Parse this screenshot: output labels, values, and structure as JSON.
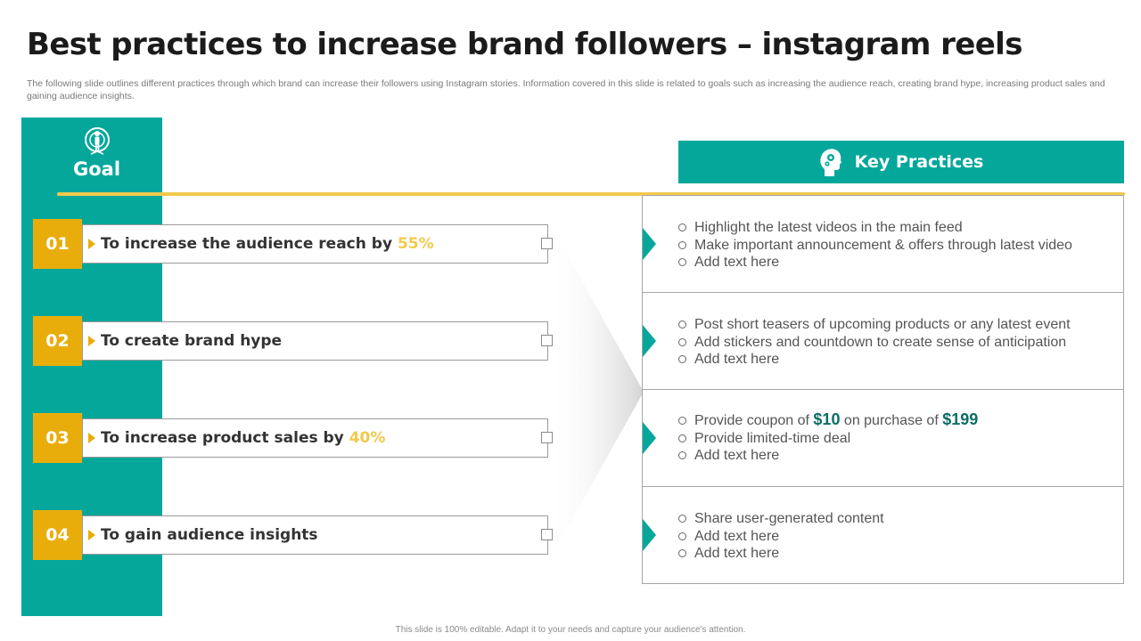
{
  "title": "Best practices to increase brand followers – instagram reels",
  "subtitle": "The following slide outlines different practices through which brand can increase their followers using Instagram stories. Information covered in this slide is related to goals such as increasing the audience reach, creating brand hype,  increasing product sales and gaining audience insights.",
  "goal_header": {
    "label": "Goal",
    "icon": "person-target-icon"
  },
  "practices_header": {
    "label": "Key Practices",
    "icon": "head-gears-icon"
  },
  "colors": {
    "teal": "#06a79b",
    "gold": "#e9ad0b",
    "yellow": "#f2c94c",
    "money": "#0b6e66"
  },
  "goals": [
    {
      "number": "01",
      "text": "To increase the audience reach by ",
      "highlight": "55%"
    },
    {
      "number": "02",
      "text": "To create brand hype",
      "highlight": ""
    },
    {
      "number": "03",
      "text": "To increase product sales by ",
      "highlight": "40%"
    },
    {
      "number": "04",
      "text": "To gain audience insights",
      "highlight": ""
    }
  ],
  "practices": [
    [
      "Highlight the latest videos in the main feed",
      "Make important announcement  & offers through latest video",
      "Add text here"
    ],
    [
      "Post short teasers of upcoming products or any latest event",
      "Add stickers and countdown  to create sense of anticipation",
      "Add text here"
    ],
    [
      {
        "pre": "Provide coupon of ",
        "amount1": "$10",
        "mid": " on purchase of ",
        "amount2": "$199"
      },
      "Provide limited-time deal",
      "Add text here"
    ],
    [
      "Share user-generated content",
      "Add text here",
      "Add text here"
    ]
  ],
  "footer": "This slide is 100% editable.  Adapt it to your needs and capture your audience's attention."
}
